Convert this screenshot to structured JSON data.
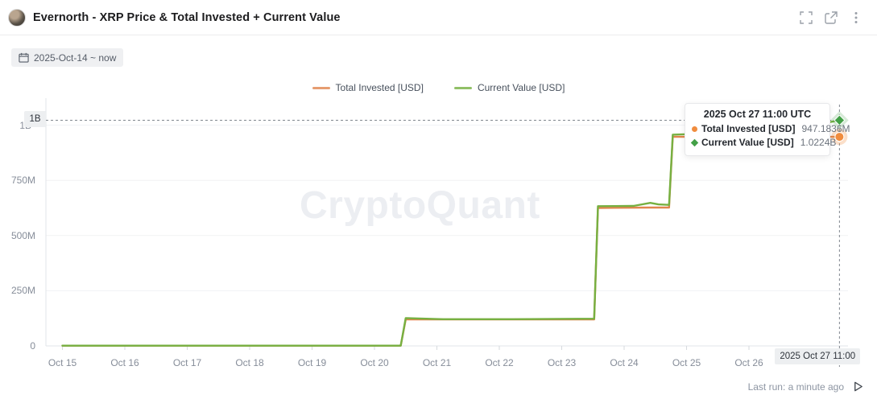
{
  "header": {
    "title": "Evernorth - XRP Price & Total Invested + Current Value"
  },
  "toolbar": {
    "date_range": "2025-Oct-14 ~ now"
  },
  "legend": [
    {
      "label": "Total Invested [USD]",
      "color": "#e0854d"
    },
    {
      "label": "Current Value [USD]",
      "color": "#76b041"
    }
  ],
  "watermark": "CryptoQuant",
  "tooltip": {
    "title": "2025 Oct 27 11:00 UTC",
    "rows": [
      {
        "label": "Total Invested [USD]",
        "value": "947.1836M",
        "marker": "circle",
        "color": "#f08c3e"
      },
      {
        "label": "Current Value [USD]",
        "value": "1.0224B",
        "marker": "diamond",
        "color": "#43a047"
      }
    ]
  },
  "crosshair": {
    "x_label": "2025 Oct 27 11:00",
    "y_label": "1B",
    "day": 12.45
  },
  "status": {
    "last_run": "Last run: a minute ago"
  },
  "chart_data": {
    "type": "line",
    "title": "Evernorth - XRP Price & Total Invested + Current Value",
    "x_range": "2025-Oct-14 ~ now",
    "unit": "USD (millions)",
    "grid": true,
    "legend_position": "top-center",
    "x_axis": {
      "labels": [
        "Oct 15",
        "Oct 16",
        "Oct 17",
        "Oct 18",
        "Oct 19",
        "Oct 20",
        "Oct 21",
        "Oct 22",
        "Oct 23",
        "Oct 24",
        "Oct 25",
        "Oct 26"
      ]
    },
    "y_axis": {
      "ticks": [
        {
          "v": 0,
          "label": "0"
        },
        {
          "v": 250,
          "label": "250M"
        },
        {
          "v": 500,
          "label": "500M"
        },
        {
          "v": 750,
          "label": "750M"
        },
        {
          "v": 1000,
          "label": "1B"
        }
      ],
      "max": 1050
    },
    "series": [
      {
        "id": "total-invested",
        "name": "Total Invested [USD]",
        "color": "#e0854d",
        "end_value_label": "947.1836M",
        "end_marker": "circle",
        "end_marker_color": "#f08c3e",
        "points": [
          [
            0,
            1
          ],
          [
            5.42,
            1
          ],
          [
            5.5,
            120
          ],
          [
            8.52,
            120
          ],
          [
            8.58,
            625
          ],
          [
            9.4,
            627
          ],
          [
            9.72,
            627
          ],
          [
            9.78,
            947
          ],
          [
            12.45,
            947.18
          ]
        ]
      },
      {
        "id": "current-value",
        "name": "Current Value [USD]",
        "color": "#76b041",
        "end_value_label": "1.0224B",
        "end_marker": "diamond",
        "end_marker_color": "#43a047",
        "points": [
          [
            0,
            1
          ],
          [
            5.42,
            1
          ],
          [
            5.5,
            126
          ],
          [
            6.1,
            121
          ],
          [
            7.2,
            121
          ],
          [
            8.52,
            123
          ],
          [
            8.58,
            633
          ],
          [
            9.15,
            634
          ],
          [
            9.42,
            648
          ],
          [
            9.55,
            641
          ],
          [
            9.72,
            639
          ],
          [
            9.78,
            957
          ],
          [
            10.2,
            961
          ],
          [
            11.2,
            978
          ],
          [
            12.0,
            998
          ],
          [
            12.45,
            1022.4
          ]
        ]
      }
    ],
    "hover_point": {
      "time": "2025 Oct 27 11:00 UTC",
      "total_invested": "947.1836M",
      "current_value": "1.0224B"
    }
  }
}
